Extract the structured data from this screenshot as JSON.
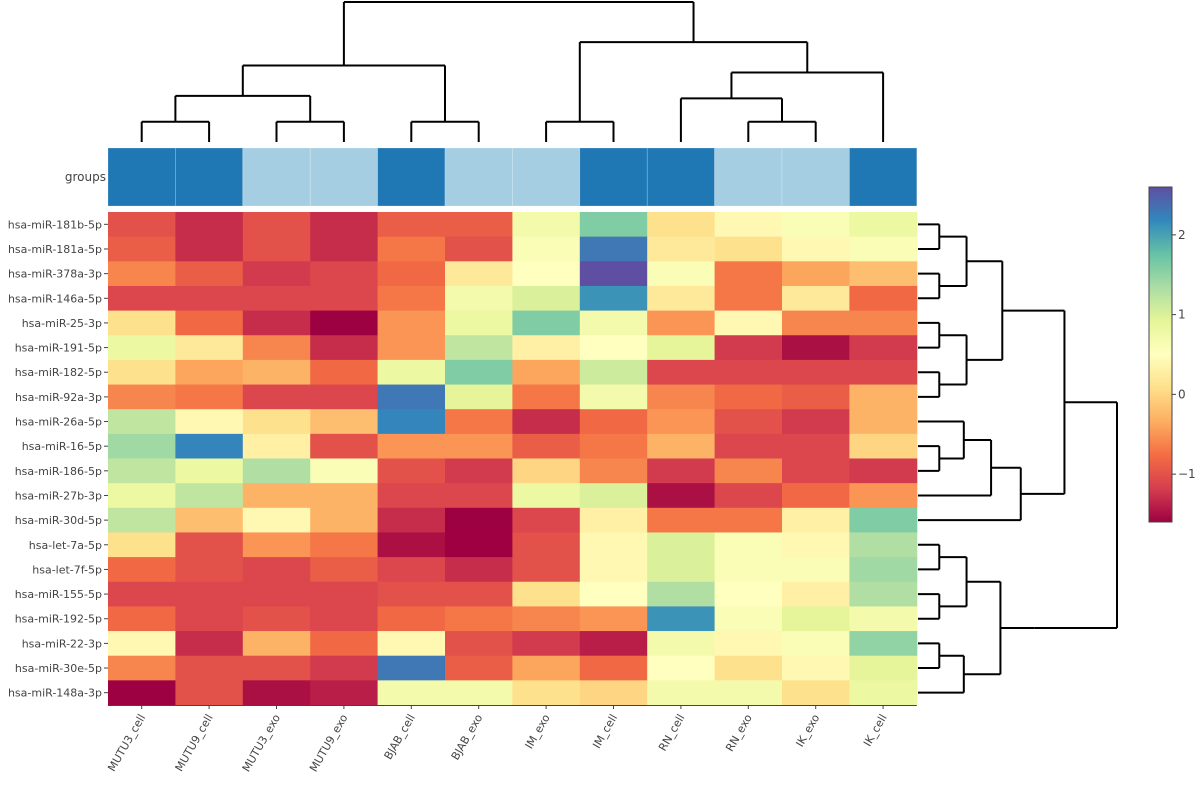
{
  "chart_data": {
    "type": "heatmap",
    "title": "",
    "group_track_label": "groups",
    "columns": [
      "MUTU3_cell",
      "MUTU9_cell",
      "MUTU3_exo",
      "MUTU9_exo",
      "BJAB_cell",
      "BJAB_exo",
      "IM_exo",
      "IM_cell",
      "RN_cell",
      "RN_exo",
      "IK_exo",
      "IK_cell"
    ],
    "column_groups": [
      "cell",
      "cell",
      "exo",
      "exo",
      "cell",
      "exo",
      "exo",
      "cell",
      "cell",
      "exo",
      "exo",
      "cell"
    ],
    "group_colors": {
      "cell": "#1f77b4",
      "exo": "#a6cee3"
    },
    "rows": [
      "hsa-miR-181b-5p",
      "hsa-miR-181a-5p",
      "hsa-miR-378a-3p",
      "hsa-miR-146a-5p",
      "hsa-miR-25-3p",
      "hsa-miR-191-5p",
      "hsa-miR-182-5p",
      "hsa-miR-92a-3p",
      "hsa-miR-26a-5p",
      "hsa-miR-16-5p",
      "hsa-miR-186-5p",
      "hsa-miR-27b-3p",
      "hsa-miR-30d-5p",
      "hsa-let-7a-5p",
      "hsa-let-7f-5p",
      "hsa-miR-155-5p",
      "hsa-miR-192-5p",
      "hsa-miR-22-3p",
      "hsa-miR-30e-5p",
      "hsa-miR-148a-3p"
    ],
    "values": [
      [
        -1.0,
        -1.3,
        -1.0,
        -1.3,
        -0.9,
        -0.9,
        0.7,
        1.6,
        0.1,
        0.4,
        0.6,
        0.8
      ],
      [
        -0.9,
        -1.3,
        -1.0,
        -1.3,
        -0.7,
        -1.0,
        0.6,
        2.3,
        0.2,
        0.1,
        0.4,
        0.6
      ],
      [
        -0.6,
        -0.9,
        -1.2,
        -1.1,
        -0.8,
        0.2,
        0.5,
        2.6,
        0.6,
        -0.7,
        -0.4,
        -0.2
      ],
      [
        -1.1,
        -1.1,
        -1.1,
        -1.1,
        -0.7,
        0.7,
        1.0,
        2.1,
        0.2,
        -0.7,
        0.2,
        -0.8
      ],
      [
        0.1,
        -0.8,
        -1.3,
        -1.9,
        -0.5,
        0.8,
        1.6,
        0.7,
        -0.5,
        0.4,
        -0.6,
        -0.6
      ],
      [
        0.8,
        0.2,
        -0.6,
        -1.3,
        -0.5,
        1.2,
        0.3,
        0.5,
        0.9,
        -1.2,
        -1.5,
        -1.2
      ],
      [
        0.1,
        -0.4,
        -0.3,
        -0.8,
        0.8,
        1.6,
        -0.4,
        1.1,
        -1.1,
        -1.1,
        -1.1,
        -1.1
      ],
      [
        -0.6,
        -0.7,
        -1.1,
        -1.1,
        2.3,
        0.9,
        -0.7,
        0.7,
        -0.6,
        -0.8,
        -0.9,
        -0.3
      ],
      [
        1.2,
        0.4,
        0.1,
        -0.2,
        2.2,
        -0.7,
        -1.3,
        -0.8,
        -0.5,
        -1.0,
        -1.2,
        -0.3
      ],
      [
        1.4,
        2.2,
        0.3,
        -1.0,
        -0.5,
        -0.5,
        -0.9,
        -0.7,
        -0.3,
        -1.1,
        -1.1,
        0.0
      ],
      [
        1.2,
        0.8,
        1.3,
        0.6,
        -1.0,
        -1.2,
        0.0,
        -0.6,
        -1.2,
        -0.6,
        -1.1,
        -1.2
      ],
      [
        0.8,
        1.2,
        -0.3,
        -0.3,
        -1.1,
        -1.1,
        0.8,
        1.0,
        -1.5,
        -1.1,
        -0.8,
        -0.5
      ],
      [
        1.2,
        -0.2,
        0.4,
        -0.3,
        -1.3,
        -1.6,
        -1.1,
        0.3,
        -0.7,
        -0.7,
        0.3,
        1.6
      ],
      [
        0.1,
        -1.0,
        -0.5,
        -0.7,
        -1.5,
        -1.6,
        -1.0,
        0.4,
        1.0,
        0.6,
        0.4,
        1.3
      ],
      [
        -0.8,
        -1.0,
        -1.1,
        -0.9,
        -1.1,
        -1.3,
        -1.0,
        0.4,
        1.0,
        0.6,
        0.6,
        1.4
      ],
      [
        -1.1,
        -1.1,
        -1.1,
        -1.1,
        -1.0,
        -1.0,
        0.1,
        0.5,
        1.3,
        0.5,
        0.3,
        1.3
      ],
      [
        -0.8,
        -1.1,
        -1.0,
        -1.1,
        -0.8,
        -0.7,
        -0.6,
        -0.5,
        2.1,
        0.6,
        0.9,
        0.7
      ],
      [
        0.4,
        -1.3,
        -0.3,
        -0.8,
        0.4,
        -1.0,
        -1.2,
        -1.4,
        0.7,
        0.4,
        0.6,
        1.5
      ],
      [
        -0.6,
        -1.0,
        -1.0,
        -1.2,
        2.3,
        -0.9,
        -0.4,
        -0.8,
        0.5,
        0.1,
        0.4,
        0.9
      ],
      [
        -1.6,
        -1.0,
        -1.5,
        -1.4,
        0.7,
        0.7,
        0.1,
        0.0,
        0.7,
        0.7,
        0.1,
        0.8
      ]
    ],
    "colorscale": "Spectral",
    "zrange": [
      -1.6,
      2.6
    ],
    "colorbar_ticks": [
      2,
      1,
      0,
      -1
    ],
    "colorbar_tick_labels": [
      "2",
      "1",
      "0",
      "−1"
    ],
    "column_dendrogram": "((((MUTU3_cell,MUTU9_cell),(MUTU3_exo,MUTU9_exo)),(BJAB_cell,BJAB_exo)),((IM_exo,IM_cell),((RN_cell,(RN_exo,IK_exo)),IK_cell)))",
    "row_dendrogram": "(((((hsa-miR-181b-5p,hsa-miR-181a-5p),(hsa-miR-378a-3p,hsa-miR-146a-5p)),((hsa-miR-25-3p,hsa-miR-191-5p),(hsa-miR-182-5p,hsa-miR-92a-3p))),(((hsa-miR-26a-5p,(hsa-miR-16-5p,hsa-miR-186-5p)),hsa-miR-27b-3p),hsa-miR-30d-5p)),((((hsa-let-7a-5p,hsa-let-7f-5p),(hsa-miR-155-5p,hsa-miR-192-5p)),((hsa-miR-22-3p,hsa-miR-30e-5p),hsa-miR-148a-3p))))"
  }
}
